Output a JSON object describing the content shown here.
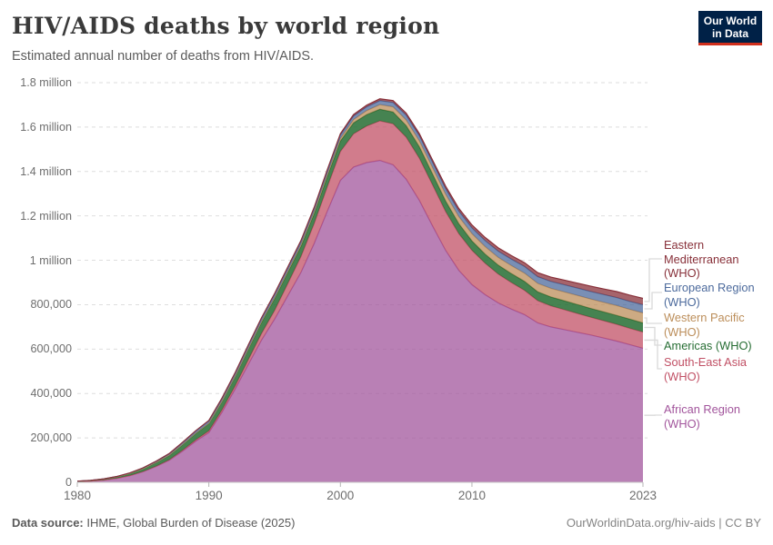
{
  "header": {
    "title": "HIV/AIDS deaths by world region",
    "subtitle": "Estimated annual number of deaths from HIV/AIDS."
  },
  "logo": {
    "line1": "Our World",
    "line2": "in Data",
    "bg_color": "#002147",
    "bar_color": "#d1301d"
  },
  "y_axis": {
    "ticks": [
      {
        "value": 0,
        "label": "0"
      },
      {
        "value": 200000,
        "label": "200,000"
      },
      {
        "value": 400000,
        "label": "400,000"
      },
      {
        "value": 600000,
        "label": "600,000"
      },
      {
        "value": 800000,
        "label": "800,000"
      },
      {
        "value": 1000000,
        "label": "1 million"
      },
      {
        "value": 1200000,
        "label": "1.2 million"
      },
      {
        "value": 1400000,
        "label": "1.4 million"
      },
      {
        "value": 1600000,
        "label": "1.6 million"
      },
      {
        "value": 1800000,
        "label": "1.8 million"
      }
    ]
  },
  "x_axis": {
    "ticks": [
      {
        "year": 1980,
        "label": "1980"
      },
      {
        "year": 1990,
        "label": "1990"
      },
      {
        "year": 2000,
        "label": "2000"
      },
      {
        "year": 2010,
        "label": "2010"
      },
      {
        "year": 2023,
        "label": "2023"
      }
    ]
  },
  "chart_data": {
    "type": "area",
    "stacked": true,
    "title": "HIV/AIDS deaths by world region",
    "xlim": [
      1980,
      2023
    ],
    "ylim": [
      0,
      1800000
    ],
    "grid": "dashed-horizontal",
    "legend_position": "right",
    "x": [
      1980,
      1981,
      1982,
      1983,
      1984,
      1985,
      1986,
      1987,
      1988,
      1989,
      1990,
      1991,
      1992,
      1993,
      1994,
      1995,
      1996,
      1997,
      1998,
      1999,
      2000,
      2001,
      2002,
      2003,
      2004,
      2005,
      2006,
      2007,
      2008,
      2009,
      2010,
      2011,
      2012,
      2013,
      2014,
      2015,
      2016,
      2017,
      2018,
      2019,
      2020,
      2021,
      2022,
      2023
    ],
    "series": [
      {
        "name": "african",
        "label": "African Region (WHO)",
        "color": "#A2559C",
        "fill_opacity": 0.75,
        "values": [
          3000,
          5000,
          10000,
          18000,
          30000,
          48000,
          72000,
          100000,
          140000,
          185000,
          224000,
          315000,
          420000,
          530000,
          640000,
          735000,
          840000,
          945000,
          1075000,
          1220000,
          1360000,
          1420000,
          1440000,
          1450000,
          1430000,
          1365000,
          1270000,
          1155000,
          1045000,
          955000,
          890000,
          845000,
          808000,
          780000,
          755000,
          718000,
          700000,
          688000,
          676000,
          664000,
          650000,
          636000,
          620000,
          604000
        ]
      },
      {
        "name": "south_east_asia",
        "label": "South-East Asia (WHO)",
        "color": "#C15065",
        "fill_opacity": 0.75,
        "values": [
          100,
          150,
          200,
          300,
          500,
          700,
          1000,
          2000,
          4000,
          6000,
          8000,
          11000,
          15000,
          22000,
          30000,
          40000,
          55000,
          72000,
          90000,
          110000,
          130000,
          150000,
          165000,
          178000,
          185000,
          190000,
          190000,
          185000,
          175000,
          165000,
          155000,
          142000,
          130000,
          120000,
          110000,
          100000,
          95000,
          90000,
          85000,
          80000,
          78000,
          76000,
          74000,
          73000
        ]
      },
      {
        "name": "americas",
        "label": "Americas (WHO)",
        "color": "#266D33",
        "fill_opacity": 0.85,
        "values": [
          1500,
          2500,
          4000,
          6000,
          9000,
          12000,
          16000,
          20000,
          25000,
          29000,
          33000,
          38000,
          42000,
          47000,
          50000,
          53000,
          50000,
          46000,
          45000,
          46000,
          47000,
          49000,
          51000,
          52000,
          53000,
          52000,
          51000,
          49000,
          47000,
          45000,
          42000,
          41000,
          40000,
          40000,
          40000,
          40000,
          40000,
          40000,
          40000,
          40000,
          40000,
          40000,
          41000,
          41000
        ]
      },
      {
        "name": "western_pacific",
        "label": "Western Pacific (WHO)",
        "color": "#BC8E5A",
        "fill_opacity": 0.75,
        "values": [
          200,
          300,
          400,
          500,
          700,
          1000,
          1300,
          1600,
          2000,
          2000,
          2200,
          2500,
          3000,
          3500,
          4000,
          5000,
          6000,
          7000,
          8000,
          10000,
          12000,
          15000,
          18000,
          21000,
          23000,
          25000,
          27000,
          29000,
          31000,
          32000,
          33000,
          34000,
          35000,
          36000,
          37000,
          38000,
          39000,
          40000,
          41000,
          42000,
          43000,
          44000,
          44000,
          45000
        ]
      },
      {
        "name": "european",
        "label": "European Region (WHO)",
        "color": "#4C6A9C",
        "fill_opacity": 0.75,
        "values": [
          300,
          500,
          800,
          1200,
          2000,
          3000,
          4500,
          6000,
          8000,
          9000,
          10000,
          11000,
          12000,
          13000,
          13500,
          14000,
          14000,
          14000,
          14500,
          15000,
          15000,
          16000,
          17000,
          18000,
          20000,
          22000,
          23000,
          24000,
          25000,
          25000,
          26000,
          27000,
          28000,
          29000,
          30000,
          30000,
          31000,
          32000,
          33000,
          34000,
          35000,
          36000,
          36000,
          37000
        ]
      },
      {
        "name": "eastern_mediterranean",
        "label": "Eastern Mediterranean (WHO)",
        "color": "#883039",
        "fill_opacity": 0.75,
        "values": [
          100,
          150,
          200,
          300,
          400,
          600,
          800,
          1000,
          1200,
          1500,
          1800,
          2200,
          2600,
          3000,
          3500,
          4000,
          4500,
          5000,
          5500,
          6000,
          6500,
          7000,
          7500,
          8000,
          8500,
          9000,
          9500,
          10000,
          11000,
          12000,
          13000,
          14000,
          15000,
          16000,
          17000,
          18000,
          19000,
          21000,
          22000,
          24000,
          25000,
          27000,
          28000,
          29000
        ]
      }
    ]
  },
  "legend": {
    "items": [
      {
        "label": "Eastern Mediterranean (WHO)",
        "color": "#883039",
        "series": "eastern_mediterranean"
      },
      {
        "label": "European Region (WHO)",
        "color": "#4C6A9C",
        "series": "european"
      },
      {
        "label": "Western Pacific (WHO)",
        "color": "#BC8E5A",
        "series": "western_pacific"
      },
      {
        "label": "Americas (WHO)",
        "color": "#266D33",
        "series": "americas"
      },
      {
        "label": "South-East Asia (WHO)",
        "color": "#C15065",
        "series": "south_east_asia"
      },
      {
        "label": "African Region (WHO)",
        "color": "#A2559C",
        "series": "african"
      }
    ]
  },
  "footer": {
    "source_label": "Data source:",
    "source_value": " IHME, Global Burden of Disease (2025)",
    "link": "OurWorldinData.org/hiv-aids | CC BY"
  }
}
